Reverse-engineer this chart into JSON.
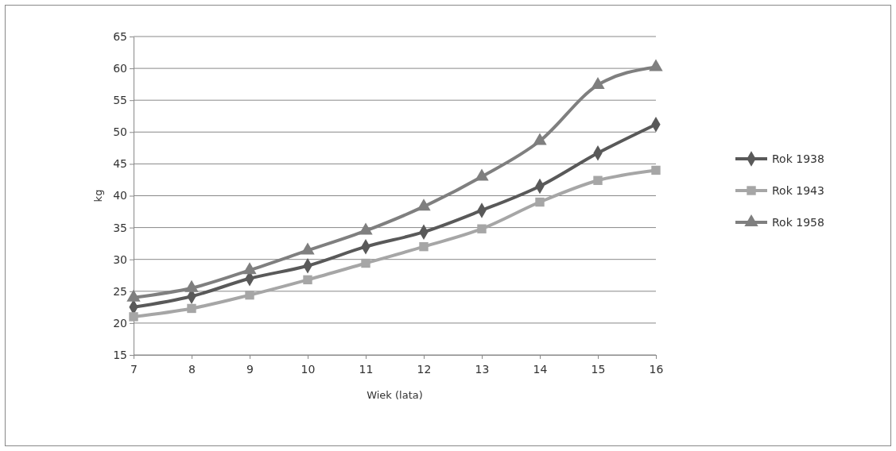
{
  "chart_data": {
    "type": "line",
    "xlabel": "Wiek (lata)",
    "ylabel": "kg",
    "x": [
      7,
      8,
      9,
      10,
      11,
      12,
      13,
      14,
      15,
      16
    ],
    "xlim": [
      7,
      16
    ],
    "xticks": [
      7,
      8,
      9,
      10,
      11,
      12,
      13,
      14,
      15,
      16
    ],
    "ylim": [
      15,
      65
    ],
    "yticks": [
      15,
      20,
      25,
      30,
      35,
      40,
      45,
      50,
      55,
      60,
      65
    ],
    "grid": "y",
    "legend": "right",
    "line_style": "solid",
    "series": [
      {
        "name": "Rok 1938",
        "color": "#595959",
        "marker": "diamond",
        "values": [
          22.5,
          24.2,
          27,
          29,
          32,
          34.3,
          37.7,
          41.5,
          46.7,
          51.2
        ]
      },
      {
        "name": "Rok 1943",
        "color": "#a6a6a6",
        "marker": "square",
        "values": [
          21,
          22.3,
          24.4,
          26.8,
          29.4,
          32,
          34.8,
          39,
          42.4,
          44
        ]
      },
      {
        "name": "Rok 1958",
        "color": "#7f7f7f",
        "marker": "triangle",
        "values": [
          24,
          25.5,
          28.3,
          31.4,
          34.5,
          38.3,
          43,
          48.6,
          57.4,
          60.2
        ]
      }
    ]
  }
}
